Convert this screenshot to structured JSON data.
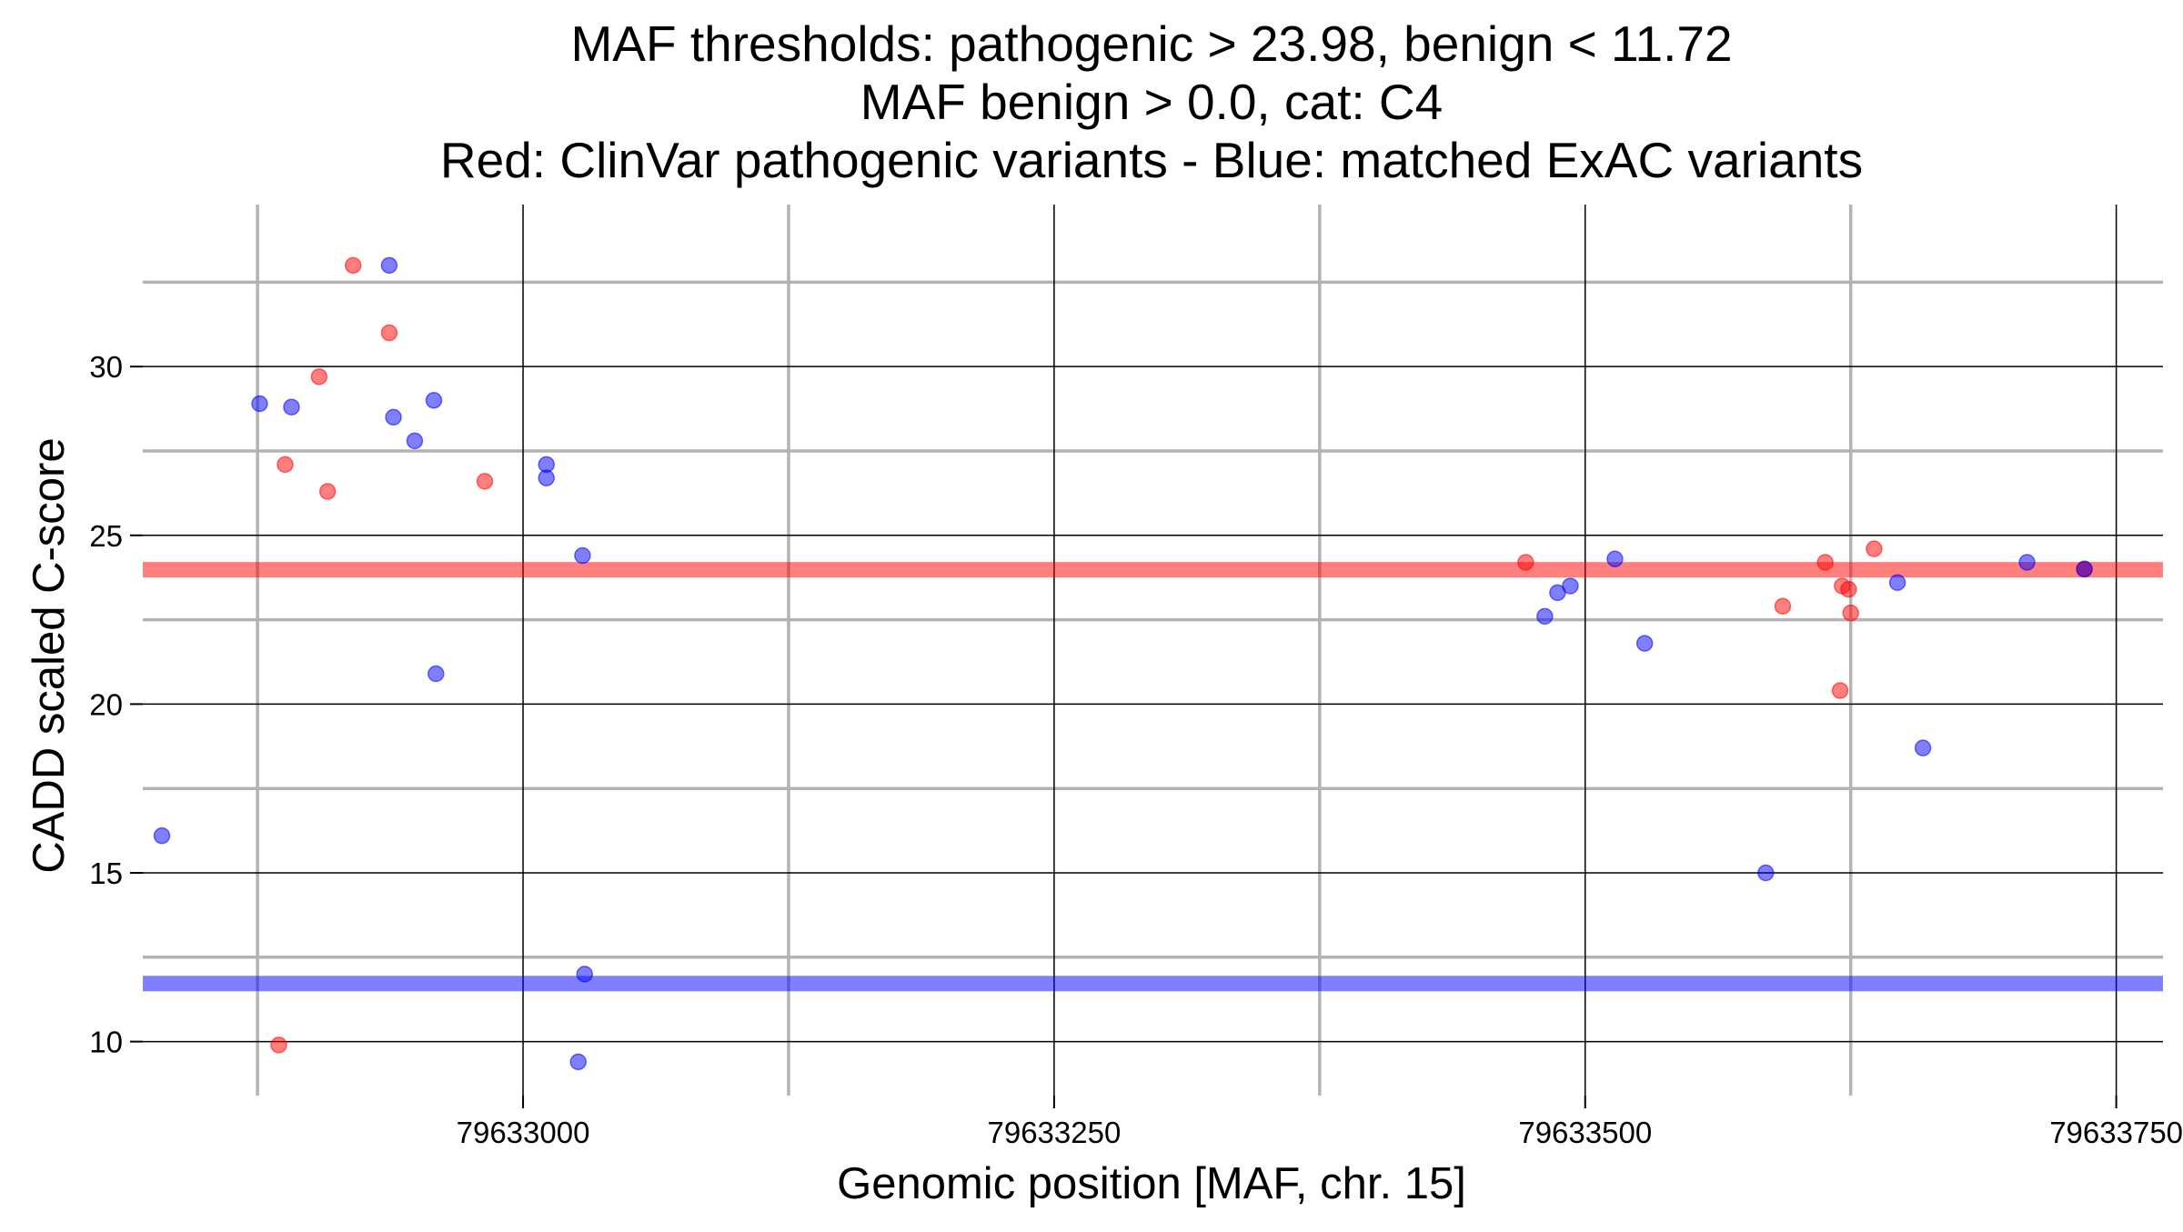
{
  "chart_data": {
    "type": "scatter",
    "title": [
      "MAF thresholds: pathogenic > 23.98, benign < 11.72",
      "MAF benign > 0.0, cat: C4",
      "Red: ClinVar pathogenic variants - Blue: matched ExAC variants"
    ],
    "xlabel": "Genomic position [MAF, chr. 15]",
    "ylabel": "CADD scaled C-score",
    "xlim": [
      79632821,
      79633772
    ],
    "ylim": [
      8.4,
      34.8
    ],
    "x_ticks": [
      79633000,
      79633250,
      79633500,
      79633750
    ],
    "x_tick_labels": [
      "79633000",
      "79633250",
      "79633500",
      "79633750"
    ],
    "y_ticks": [
      10,
      15,
      20,
      25,
      30
    ],
    "y_tick_labels": [
      "10",
      "15",
      "20",
      "25",
      "30"
    ],
    "x_minor_grid": [
      79632875,
      79633125,
      79633375,
      79633625
    ],
    "y_minor_grid": [
      12.5,
      17.5,
      22.5,
      27.5,
      32.5
    ],
    "grid": true,
    "legend": "none",
    "colors": {
      "pathogenic": "#ff0000",
      "benign": "#0000ff",
      "grid_major": "#000000",
      "grid_minor": "#b3b3b3"
    },
    "thresholds": [
      {
        "name": "pathogenic",
        "value": 23.98,
        "color": "#ff0000"
      },
      {
        "name": "benign",
        "value": 11.72,
        "color": "#0000ff"
      }
    ],
    "series": [
      {
        "color": "#ff0000",
        "points": [
          {
            "x": 79632885,
            "y": 9.9
          },
          {
            "x": 79632888,
            "y": 27.1
          },
          {
            "x": 79632904,
            "y": 29.7
          },
          {
            "x": 79632908,
            "y": 26.3
          },
          {
            "x": 79632920,
            "y": 33.0
          },
          {
            "x": 79632937,
            "y": 31.0
          },
          {
            "x": 79632982,
            "y": 26.6
          },
          {
            "x": 79633472,
            "y": 24.2
          },
          {
            "x": 79633593,
            "y": 22.9
          },
          {
            "x": 79633613,
            "y": 24.2
          },
          {
            "x": 79633620,
            "y": 20.4
          },
          {
            "x": 79633621,
            "y": 23.5
          },
          {
            "x": 79633624,
            "y": 23.4
          },
          {
            "x": 79633625,
            "y": 22.7
          },
          {
            "x": 79633636,
            "y": 24.6
          },
          {
            "x": 79633735,
            "y": 24.0
          }
        ]
      },
      {
        "color": "#0000ff",
        "points": [
          {
            "x": 79632830,
            "y": 16.1
          },
          {
            "x": 79632876,
            "y": 28.9
          },
          {
            "x": 79632891,
            "y": 28.8
          },
          {
            "x": 79632937,
            "y": 33.0
          },
          {
            "x": 79632939,
            "y": 28.5
          },
          {
            "x": 79632949,
            "y": 27.8
          },
          {
            "x": 79632958,
            "y": 29.0
          },
          {
            "x": 79632959,
            "y": 20.9
          },
          {
            "x": 79633011,
            "y": 27.1
          },
          {
            "x": 79633011,
            "y": 26.7
          },
          {
            "x": 79633026,
            "y": 9.4
          },
          {
            "x": 79633028,
            "y": 24.4
          },
          {
            "x": 79633029,
            "y": 12.0
          },
          {
            "x": 79633481,
            "y": 22.6
          },
          {
            "x": 79633487,
            "y": 23.3
          },
          {
            "x": 79633493,
            "y": 23.5
          },
          {
            "x": 79633514,
            "y": 24.3
          },
          {
            "x": 79633528,
            "y": 21.8
          },
          {
            "x": 79633585,
            "y": 15.0
          },
          {
            "x": 79633647,
            "y": 23.6
          },
          {
            "x": 79633659,
            "y": 18.7
          },
          {
            "x": 79633708,
            "y": 24.2
          },
          {
            "x": 79633735,
            "y": 24.0
          }
        ]
      }
    ]
  }
}
